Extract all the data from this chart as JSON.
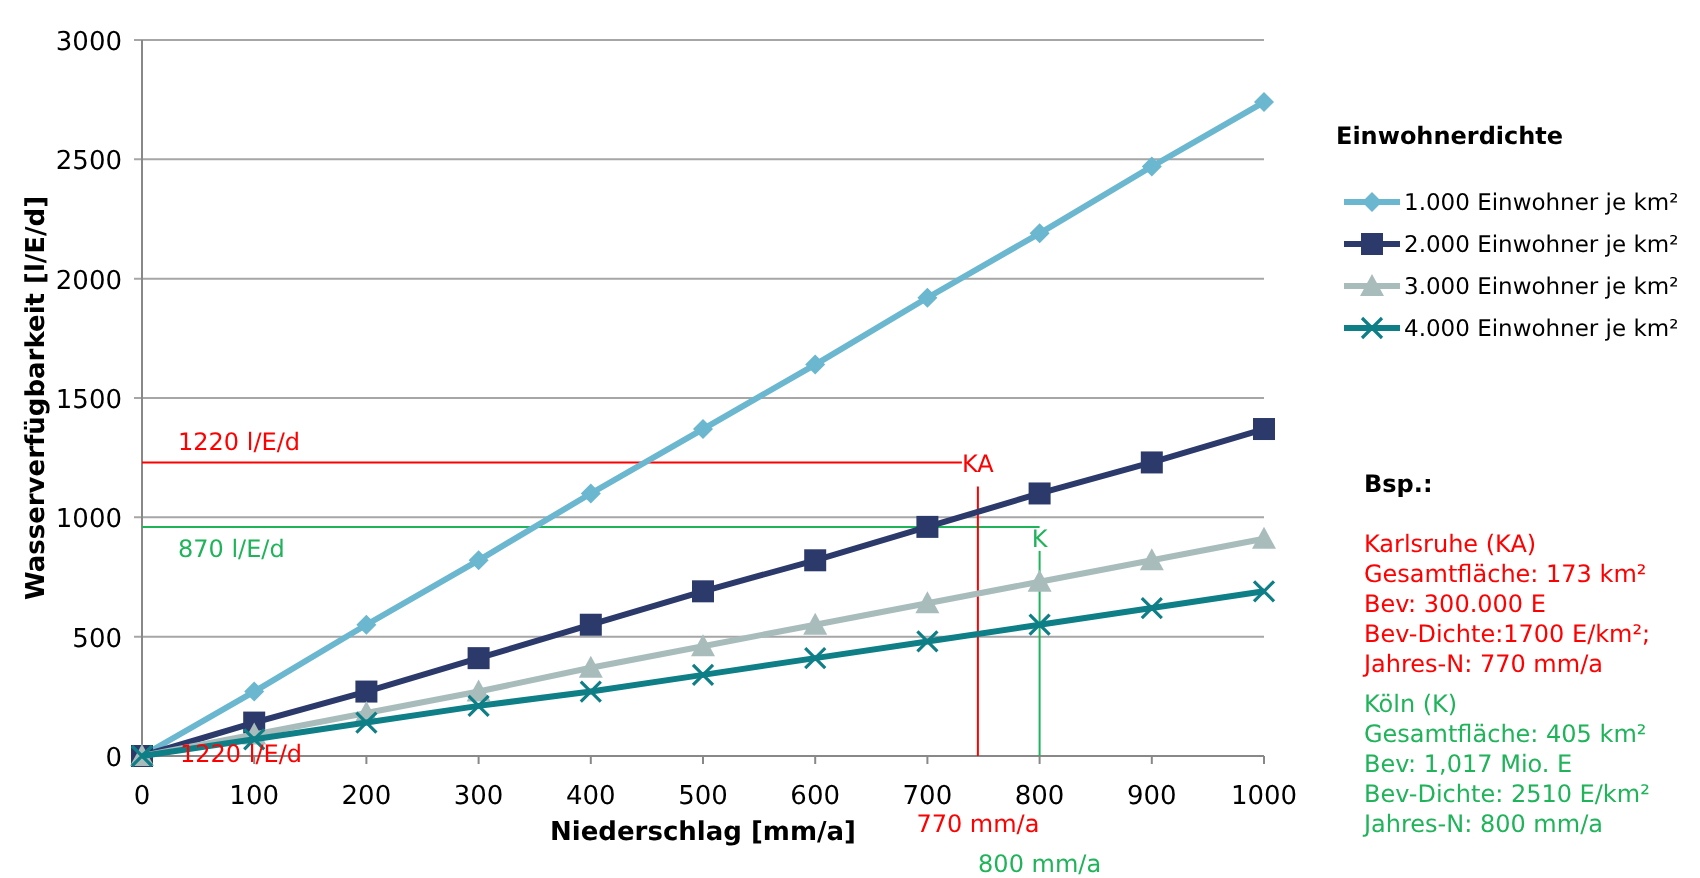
{
  "chart_data": {
    "type": "line",
    "xlabel": "Niederschlag [mm/a]",
    "ylabel": "Wasserverfügbarkeit [l/E/d]",
    "legend_title": "Einwohnerdichte",
    "legend": "right",
    "grid": "y",
    "x": [
      0,
      100,
      200,
      300,
      400,
      500,
      600,
      700,
      800,
      900,
      1000
    ],
    "xlim": [
      0,
      1000
    ],
    "xticks": [
      0,
      100,
      200,
      300,
      400,
      500,
      600,
      700,
      800,
      900,
      1000
    ],
    "ylim": [
      0,
      3000
    ],
    "yticks": [
      0,
      500,
      1000,
      1500,
      2000,
      2500,
      3000
    ],
    "series": [
      {
        "name": "1.000 Einwohner je km²",
        "color": "#6bb7cf",
        "marker": "diamond",
        "values": [
          0,
          270,
          550,
          820,
          1100,
          1370,
          1640,
          1920,
          2190,
          2470,
          2740
        ]
      },
      {
        "name": "2.000 Einwohner je km²",
        "color": "#2b3a6b",
        "marker": "square",
        "values": [
          0,
          140,
          270,
          410,
          550,
          690,
          820,
          960,
          1100,
          1230,
          1370
        ]
      },
      {
        "name": "3.000 Einwohner je km²",
        "color": "#a9bcbc",
        "marker": "triangle",
        "values": [
          0,
          90,
          180,
          270,
          370,
          460,
          550,
          640,
          730,
          820,
          910
        ]
      },
      {
        "name": "4.000 Einwohner je km²",
        "color": "#0e7f86",
        "marker": "cross",
        "values": [
          0,
          70,
          140,
          210,
          270,
          340,
          410,
          480,
          550,
          620,
          690
        ]
      }
    ],
    "ref_lines": [
      {
        "axis": "y",
        "value": 1230,
        "label": "1220 l/E/d",
        "color": "#ff0000"
      },
      {
        "axis": "y",
        "value": 960,
        "label": "870 l/E/d",
        "color": "#1fb35a"
      },
      {
        "axis": "x",
        "value": 745,
        "label": "770 mm/a",
        "color": "#ff0000"
      },
      {
        "axis": "x",
        "value": 800,
        "label": "800 mm/a",
        "color": "#1fb35a"
      }
    ],
    "annotations": [
      "KA",
      "K",
      "1220 l/E/d",
      "Bsp.:",
      "Karlsruhe (KA)\nGesamtfläche: 173 km²\nBev: 300.000 E\nBev-Dichte:1700 E/km²;\nJahres-N: 770 mm/a",
      "Köln (K)\nGesamtfläche: 405 km²\nBev: 1,017 Mio. E\nBev-Dichte: 2510 E/km²\nJahres-N: 800 mm/a"
    ]
  }
}
